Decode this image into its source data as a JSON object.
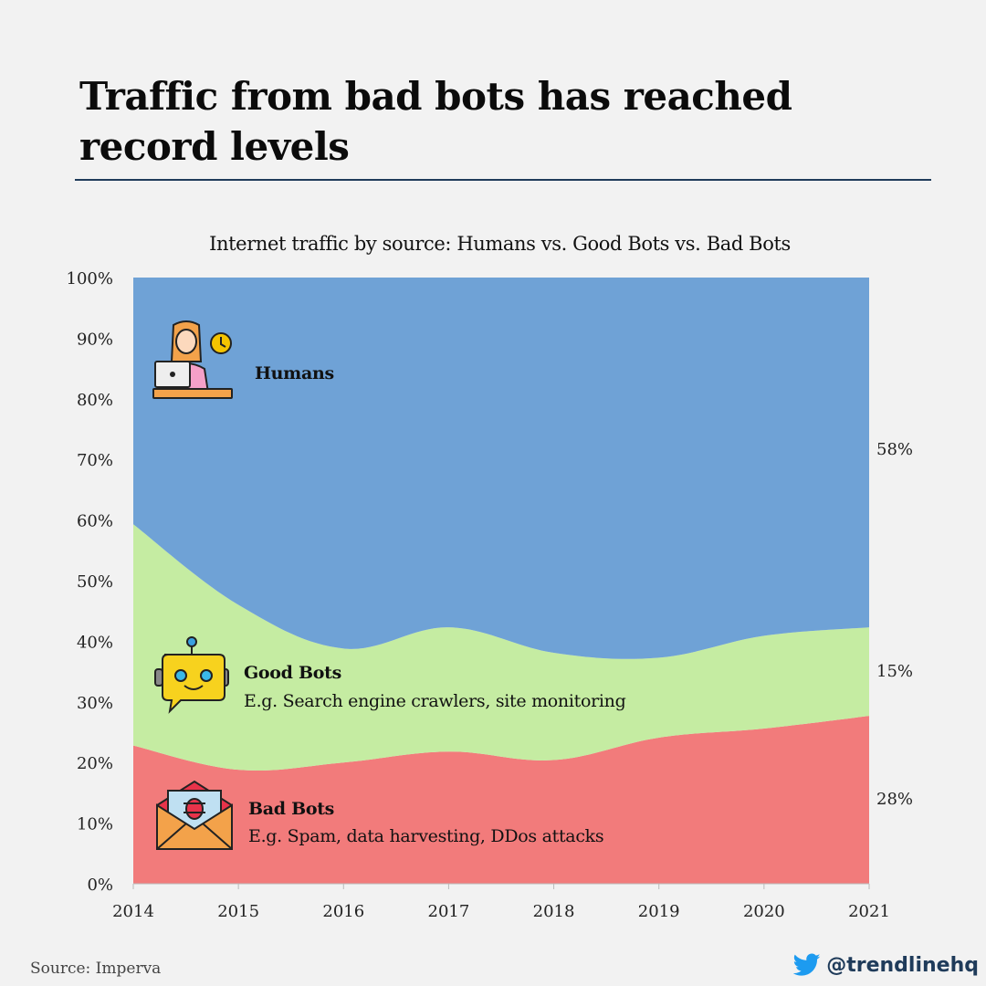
{
  "headline": "Traffic from bad bots has reached record levels",
  "source": "Source: Imperva",
  "handle": "@trendlinehq",
  "annotations": {
    "humans": {
      "title": "Humans",
      "icon": "person-with-laptop-icon"
    },
    "good_bots": {
      "title": "Good Bots",
      "subtitle": "E.g. Search engine crawlers, site monitoring",
      "icon": "robot-chat-icon"
    },
    "bad_bots": {
      "title": "Bad Bots",
      "subtitle": "E.g. Spam, data harvesting, DDos attacks",
      "icon": "malware-envelope-icon"
    }
  },
  "chart_data": {
    "type": "area",
    "stacked": true,
    "title": "Internet traffic by source: Humans vs. Good Bots vs. Bad Bots",
    "x": [
      "2014",
      "2015",
      "2016",
      "2017",
      "2018",
      "2019",
      "2020",
      "2021"
    ],
    "ylim": [
      0,
      100
    ],
    "yticks": [
      "0%",
      "10%",
      "20%",
      "30%",
      "40%",
      "50%",
      "60%",
      "70%",
      "80%",
      "90%",
      "100%"
    ],
    "series": [
      {
        "name": "Bad Bots",
        "values": [
          22.8,
          18.8,
          20.0,
          21.8,
          20.4,
          24.1,
          25.6,
          27.7
        ],
        "color": "#f27b7b"
      },
      {
        "name": "Good Bots",
        "values": [
          36.5,
          27.2,
          18.8,
          20.5,
          17.7,
          13.2,
          15.3,
          14.6
        ],
        "color": "#c5eca2"
      },
      {
        "name": "Humans",
        "values": [
          40.7,
          54.0,
          61.2,
          57.7,
          61.9,
          62.7,
          59.1,
          57.7
        ],
        "color": "#6fa2d6"
      }
    ],
    "end_labels": [
      "58%",
      "15%",
      "28%"
    ],
    "grid": false,
    "legend": "inline-annotations"
  }
}
